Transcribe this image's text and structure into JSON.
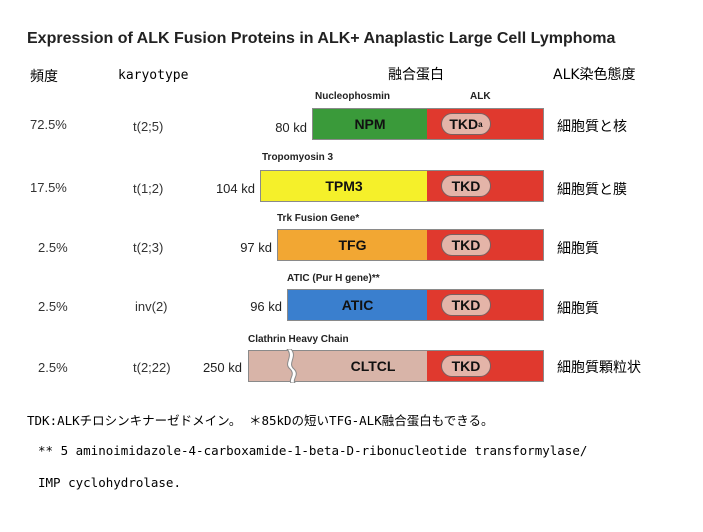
{
  "title": "Expression of ALK Fusion Proteins in ALK+ Anaplastic Large Cell Lymphoma",
  "headers": {
    "freq": "頻度",
    "karyotype": "karyotype",
    "fusion": "融合蛋白",
    "stain": "ALK染色態度"
  },
  "labels": {
    "alk": "ALK",
    "tkd": "TKD",
    "superscript": "a"
  },
  "rows": [
    {
      "freq": "72.5%",
      "karyotype": "t(2;5)",
      "kd": "80 kd",
      "protein_label": "Nucleophosmin",
      "partner": "NPM",
      "partner_color": "#3a9a3a",
      "location": "細胞質と核"
    },
    {
      "freq": "17.5%",
      "karyotype": "t(1;2)",
      "kd": "104 kd",
      "protein_label": "Tropomyosin 3",
      "partner": "TPM3",
      "partner_color": "#f5f02a",
      "location": "細胞質と膜"
    },
    {
      "freq": "2.5%",
      "karyotype": "t(2;3)",
      "kd": "97 kd",
      "protein_label": "Trk Fusion Gene*",
      "partner": "TFG",
      "partner_color": "#f2a733",
      "location": "細胞質"
    },
    {
      "freq": "2.5%",
      "karyotype": "inv(2)",
      "kd": "96 kd",
      "protein_label": "ATIC (Pur H gene)**",
      "partner": "ATIC",
      "partner_color": "#3a7fce",
      "location": "細胞質"
    },
    {
      "freq": "2.5%",
      "karyotype": "t(2;22)",
      "kd": "250 kd",
      "protein_label": "Clathrin Heavy Chain",
      "partner": "CLTCL",
      "partner_color": "#d8b4a8",
      "location": "細胞質顆粒状"
    }
  ],
  "colors": {
    "alk": "#e0392e",
    "tkd": "#e4b4a8"
  },
  "notes": [
    "TDK:ALKチロシンキナーゼドメイン。 ＊85kDの短いTFG-ALK融合蛋白もできる。",
    "** 5 aminoimidazole-4-carboxamide-1-beta-D-ribonucleotide transformylase/",
    "IMP cyclohydrolase."
  ]
}
